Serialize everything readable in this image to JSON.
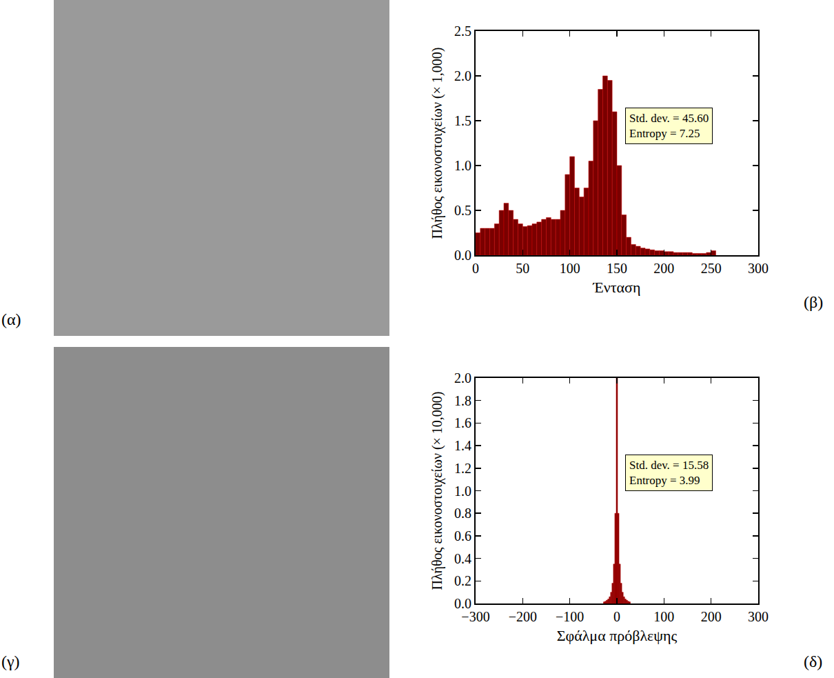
{
  "images": [
    {
      "panel": "(α)",
      "color": "#9a9a9a"
    },
    {
      "panel": "(γ)",
      "color": "#8d8d8d"
    }
  ],
  "chart_data": [
    {
      "type": "histogram",
      "panel": "(β)",
      "x_label": "Ένταση",
      "y_label": "Πλήθος εικονοστοιχείων (× 1,000)",
      "annotations": [
        "Std. dev. = 45.60",
        "Entropy = 7.25"
      ],
      "bins": [
        0,
        5,
        10,
        15,
        20,
        25,
        30,
        35,
        40,
        45,
        50,
        55,
        60,
        65,
        70,
        75,
        80,
        85,
        90,
        95,
        100,
        105,
        110,
        115,
        120,
        125,
        130,
        135,
        140,
        145,
        150,
        155,
        160,
        165,
        170,
        175,
        180,
        185,
        190,
        195,
        200,
        205,
        210,
        215,
        220,
        225,
        230,
        235,
        240,
        245,
        250,
        255
      ],
      "values": [
        0.25,
        0.3,
        0.3,
        0.3,
        0.35,
        0.5,
        0.58,
        0.5,
        0.4,
        0.35,
        0.32,
        0.33,
        0.35,
        0.37,
        0.4,
        0.42,
        0.4,
        0.4,
        0.5,
        0.9,
        1.1,
        0.75,
        0.65,
        0.75,
        1.05,
        1.5,
        1.85,
        2.0,
        1.95,
        1.6,
        1.0,
        0.45,
        0.2,
        0.12,
        0.1,
        0.08,
        0.07,
        0.06,
        0.05,
        0.05,
        0.04,
        0.04,
        0.03,
        0.03,
        0.03,
        0.03,
        0.02,
        0.02,
        0.02,
        0.03,
        0.05
      ],
      "color": "#7a0000",
      "xlim": [
        0,
        300
      ],
      "xticks": [
        0,
        50,
        100,
        150,
        200,
        250,
        300
      ],
      "ylim": [
        0,
        2.5
      ],
      "yticks": [
        {
          "value": 0,
          "label": "0.0"
        },
        0.5,
        {
          "value": 1,
          "label": "1.0"
        },
        1.5,
        {
          "value": 2,
          "label": "2.0"
        },
        2.5
      ],
      "grid": false
    },
    {
      "type": "histogram",
      "panel": "(δ)",
      "x_label": "Σφάλμα πρόβλεψης",
      "y_label": "Πλήθος εικονοστοιχείων (× 10,000)",
      "annotations": [
        "Std. dev. = 15.58",
        "Entropy = 3.99"
      ],
      "bins": [
        -28.5,
        -25.5,
        -22.5,
        -19.5,
        -16.5,
        -13.5,
        -10.5,
        -7.5,
        -4.5,
        -1.5,
        1.5,
        4.5,
        7.5,
        10.5,
        13.5,
        16.5,
        19.5,
        22.5,
        25.5,
        28.5
      ],
      "values": [
        0.015,
        0.02,
        0.03,
        0.04,
        0.06,
        0.1,
        0.18,
        0.35,
        0.8,
        2.0,
        0.8,
        0.35,
        0.18,
        0.1,
        0.06,
        0.04,
        0.03,
        0.02,
        0.015
      ],
      "color": "#7a0000",
      "xlim": [
        -300,
        300
      ],
      "xticks": [
        {
          "value": -300,
          "label": "−300"
        },
        {
          "value": -200,
          "label": "−200"
        },
        {
          "value": -100,
          "label": "−100"
        },
        0,
        100,
        200,
        300
      ],
      "ylim": [
        0,
        2.0
      ],
      "yticks": [
        {
          "value": 0,
          "label": "0.0"
        },
        0.2,
        0.4,
        0.6,
        0.8,
        {
          "value": 1,
          "label": "1.0"
        },
        1.2,
        1.4,
        1.6,
        1.8,
        {
          "value": 2,
          "label": "2.0"
        }
      ],
      "grid": false
    }
  ]
}
